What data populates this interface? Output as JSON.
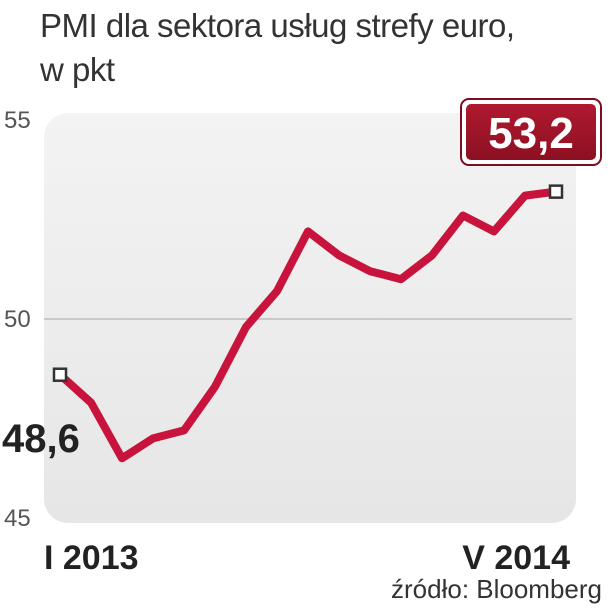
{
  "chart_data": {
    "type": "line",
    "title": [
      "PMI dla sektora usług strefy euro,",
      "w pkt"
    ],
    "ylim": [
      45,
      55
    ],
    "y_ticks": [
      "55",
      "50",
      "45"
    ],
    "y_tick_values": [
      55,
      50,
      45
    ],
    "grid": true,
    "x_labels": [
      "I 2013",
      "V 2014"
    ],
    "series": [
      {
        "color": "#c8143c",
        "values": [
          48.6,
          47.9,
          46.5,
          47.0,
          47.2,
          48.3,
          49.8,
          50.7,
          52.2,
          51.6,
          51.2,
          51.0,
          51.6,
          52.6,
          52.2,
          53.1,
          53.2
        ]
      }
    ],
    "start_label": "48,6",
    "end_label": "53,2",
    "source": "źródło: Bloomberg"
  }
}
